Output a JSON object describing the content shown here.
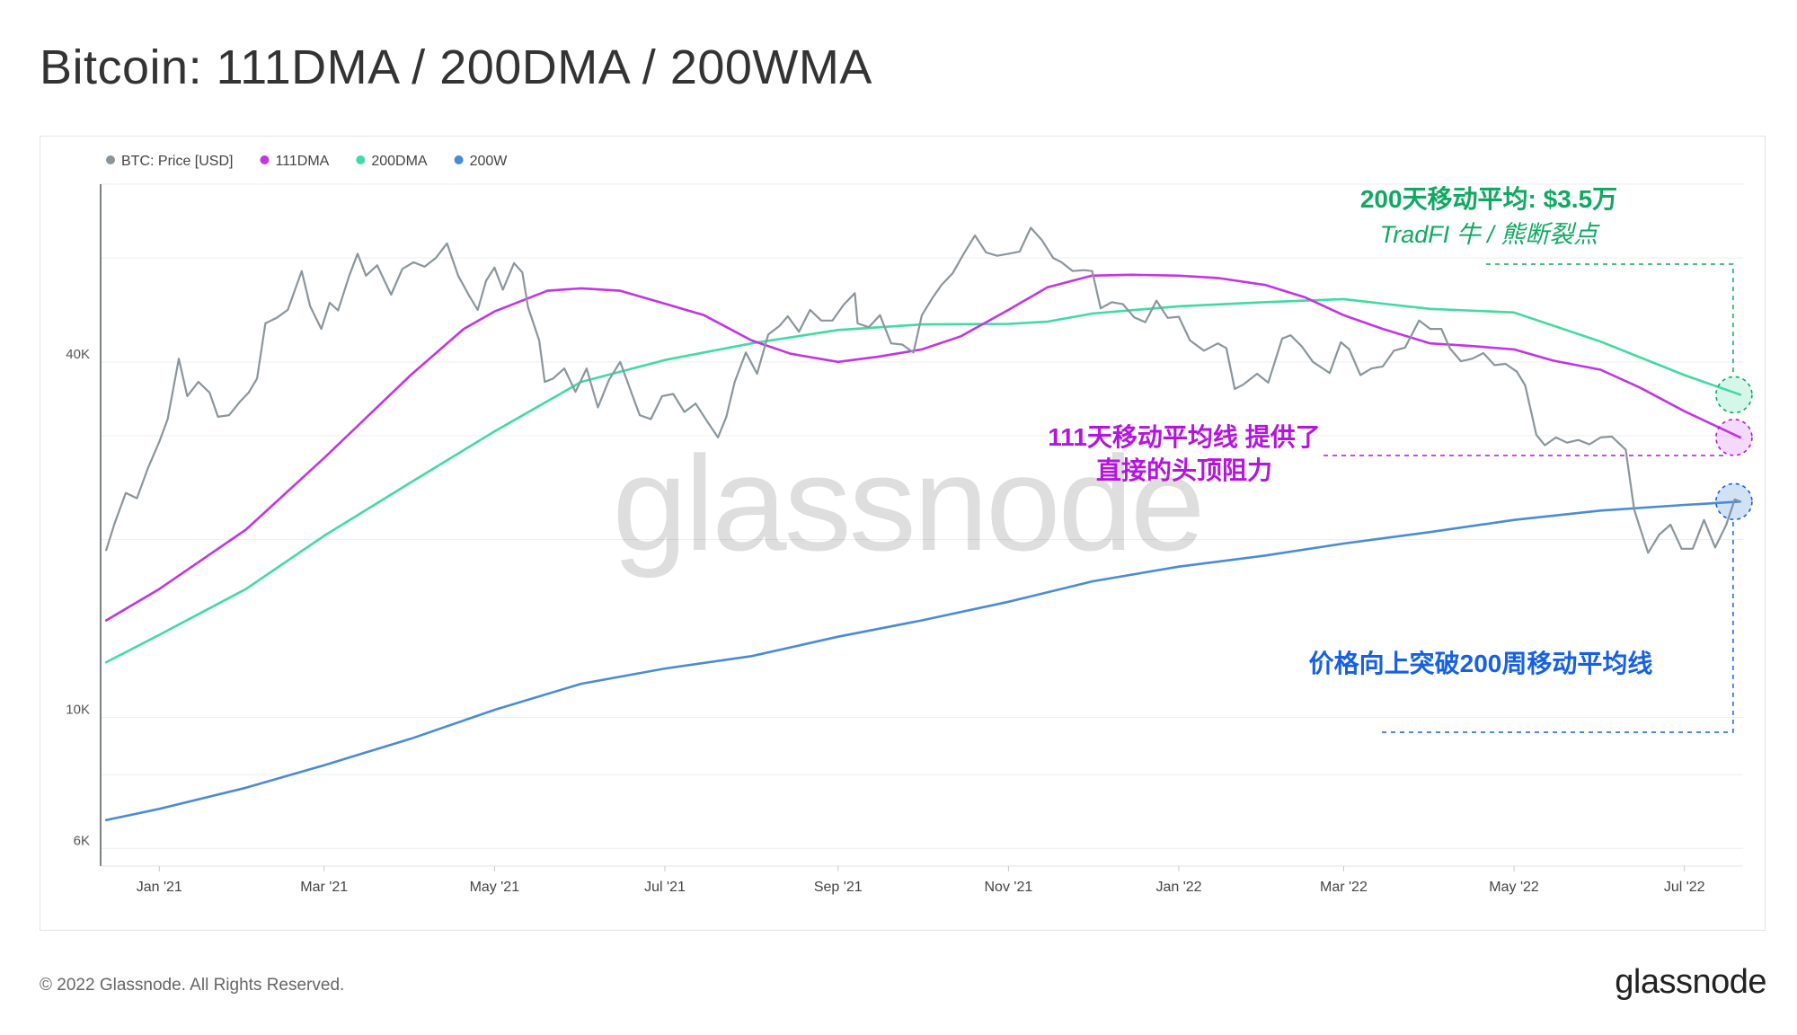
{
  "title": "Bitcoin: 111DMA / 200DMA / 200WMA",
  "footer": {
    "copyright": "© 2022 Glassnode. All Rights Reserved.",
    "logo": "glassnode"
  },
  "watermark": "glassnode",
  "annotations": {
    "dma200_line1": "200天移动平均: $3.5万",
    "dma200_line2": "TradFI 牛 / 熊断裂点",
    "dma111_line1": "111天移动平均线 提供了",
    "dma111_line2": "直接的头顶阻力",
    "wma200_line1": "价格向上突破200周移动平均线"
  },
  "colors": {
    "price": "#8a969c",
    "dma111": "#c234e6",
    "dma200": "#3fdba1",
    "wma200": "#4a8bd8",
    "annotation_green": "#0fa961",
    "annotation_purple": "#b514e0",
    "annotation_blue": "#1560e6"
  },
  "chart_data": {
    "type": "line",
    "yscale": "log",
    "ylim": [
      5600,
      80000
    ],
    "yticks": [
      {
        "label": "6K",
        "value": 6000
      },
      {
        "label": "10K",
        "value": 10000
      },
      {
        "label": "40K",
        "value": 40000
      }
    ],
    "xlim": [
      "2020-12-11",
      "2022-07-22"
    ],
    "xticks": [
      {
        "label": "Jan '21",
        "date": "2021-01-01"
      },
      {
        "label": "Mar '21",
        "date": "2021-03-01"
      },
      {
        "label": "May '21",
        "date": "2021-05-01"
      },
      {
        "label": "Jul '21",
        "date": "2021-07-01"
      },
      {
        "label": "Sep '21",
        "date": "2021-09-01"
      },
      {
        "label": "Nov '21",
        "date": "2021-11-01"
      },
      {
        "label": "Jan '22",
        "date": "2022-01-01"
      },
      {
        "label": "Mar '22",
        "date": "2022-03-01"
      },
      {
        "label": "May '22",
        "date": "2022-05-01"
      },
      {
        "label": "Jul '22",
        "date": "2022-07-01"
      }
    ],
    "legend": {
      "position": "top-left"
    },
    "series": [
      {
        "name": "BTC: Price [USD]",
        "key": "price",
        "points": [
          [
            "2020-12-13",
            19200
          ],
          [
            "2020-12-16",
            21300
          ],
          [
            "2020-12-20",
            24000
          ],
          [
            "2020-12-24",
            23500
          ],
          [
            "2020-12-28",
            26500
          ],
          [
            "2021-01-01",
            29300
          ],
          [
            "2021-01-04",
            32000
          ],
          [
            "2021-01-08",
            40500
          ],
          [
            "2021-01-11",
            35000
          ],
          [
            "2021-01-15",
            37000
          ],
          [
            "2021-01-19",
            35500
          ],
          [
            "2021-01-22",
            32300
          ],
          [
            "2021-01-26",
            32500
          ],
          [
            "2021-01-30",
            34300
          ],
          [
            "2021-02-02",
            35500
          ],
          [
            "2021-02-05",
            37500
          ],
          [
            "2021-02-08",
            46500
          ],
          [
            "2021-02-12",
            47500
          ],
          [
            "2021-02-16",
            49000
          ],
          [
            "2021-02-21",
            57000
          ],
          [
            "2021-02-24",
            49700
          ],
          [
            "2021-02-28",
            45500
          ],
          [
            "2021-03-03",
            50400
          ],
          [
            "2021-03-06",
            48900
          ],
          [
            "2021-03-10",
            56000
          ],
          [
            "2021-03-13",
            61000
          ],
          [
            "2021-03-16",
            56000
          ],
          [
            "2021-03-20",
            58300
          ],
          [
            "2021-03-25",
            52000
          ],
          [
            "2021-03-29",
            57500
          ],
          [
            "2021-04-02",
            59000
          ],
          [
            "2021-04-06",
            58000
          ],
          [
            "2021-04-10",
            60000
          ],
          [
            "2021-04-14",
            63500
          ],
          [
            "2021-04-18",
            56000
          ],
          [
            "2021-04-22",
            51700
          ],
          [
            "2021-04-25",
            49000
          ],
          [
            "2021-04-28",
            54900
          ],
          [
            "2021-05-01",
            57800
          ],
          [
            "2021-05-04",
            53000
          ],
          [
            "2021-05-08",
            58800
          ],
          [
            "2021-05-11",
            56700
          ],
          [
            "2021-05-13",
            49500
          ],
          [
            "2021-05-17",
            43500
          ],
          [
            "2021-05-19",
            37000
          ],
          [
            "2021-05-22",
            37500
          ],
          [
            "2021-05-26",
            39000
          ],
          [
            "2021-05-30",
            35600
          ],
          [
            "2021-06-03",
            39000
          ],
          [
            "2021-06-07",
            33500
          ],
          [
            "2021-06-11",
            37300
          ],
          [
            "2021-06-15",
            40000
          ],
          [
            "2021-06-19",
            35500
          ],
          [
            "2021-06-22",
            32500
          ],
          [
            "2021-06-26",
            32000
          ],
          [
            "2021-06-30",
            35000
          ],
          [
            "2021-07-04",
            35300
          ],
          [
            "2021-07-08",
            32900
          ],
          [
            "2021-07-12",
            34000
          ],
          [
            "2021-07-16",
            31800
          ],
          [
            "2021-07-20",
            29800
          ],
          [
            "2021-07-23",
            32300
          ],
          [
            "2021-07-26",
            37000
          ],
          [
            "2021-07-30",
            41500
          ],
          [
            "2021-08-03",
            38200
          ],
          [
            "2021-08-07",
            44500
          ],
          [
            "2021-08-11",
            46000
          ],
          [
            "2021-08-14",
            47800
          ],
          [
            "2021-08-18",
            45000
          ],
          [
            "2021-08-22",
            49000
          ],
          [
            "2021-08-26",
            47000
          ],
          [
            "2021-08-30",
            47000
          ],
          [
            "2021-09-03",
            50000
          ],
          [
            "2021-09-07",
            52300
          ],
          [
            "2021-09-08",
            46500
          ],
          [
            "2021-09-12",
            45800
          ],
          [
            "2021-09-16",
            48000
          ],
          [
            "2021-09-20",
            43000
          ],
          [
            "2021-09-24",
            42800
          ],
          [
            "2021-09-28",
            41500
          ],
          [
            "2021-10-01",
            48000
          ],
          [
            "2021-10-05",
            51500
          ],
          [
            "2021-10-08",
            54000
          ],
          [
            "2021-10-12",
            56500
          ],
          [
            "2021-10-16",
            61000
          ],
          [
            "2021-10-20",
            65500
          ],
          [
            "2021-10-24",
            61300
          ],
          [
            "2021-10-28",
            60500
          ],
          [
            "2021-11-01",
            61000
          ],
          [
            "2021-11-05",
            61500
          ],
          [
            "2021-11-09",
            67500
          ],
          [
            "2021-11-13",
            64300
          ],
          [
            "2021-11-17",
            60000
          ],
          [
            "2021-11-20",
            59000
          ],
          [
            "2021-11-24",
            57000
          ],
          [
            "2021-11-28",
            57200
          ],
          [
            "2021-12-01",
            57000
          ],
          [
            "2021-12-04",
            49300
          ],
          [
            "2021-12-08",
            50500
          ],
          [
            "2021-12-12",
            50100
          ],
          [
            "2021-12-16",
            47600
          ],
          [
            "2021-12-20",
            46700
          ],
          [
            "2021-12-24",
            50800
          ],
          [
            "2021-12-28",
            47500
          ],
          [
            "2022-01-01",
            47700
          ],
          [
            "2022-01-05",
            43500
          ],
          [
            "2022-01-10",
            41800
          ],
          [
            "2022-01-15",
            43000
          ],
          [
            "2022-01-18",
            42200
          ],
          [
            "2022-01-21",
            36000
          ],
          [
            "2022-01-24",
            36600
          ],
          [
            "2022-01-29",
            38200
          ],
          [
            "2022-02-02",
            36900
          ],
          [
            "2022-02-07",
            43800
          ],
          [
            "2022-02-10",
            44400
          ],
          [
            "2022-02-14",
            42500
          ],
          [
            "2022-02-18",
            40000
          ],
          [
            "2022-02-24",
            38300
          ],
          [
            "2022-02-28",
            43200
          ],
          [
            "2022-03-03",
            42000
          ],
          [
            "2022-03-07",
            38000
          ],
          [
            "2022-03-11",
            39000
          ],
          [
            "2022-03-15",
            39300
          ],
          [
            "2022-03-19",
            41800
          ],
          [
            "2022-03-23",
            42300
          ],
          [
            "2022-03-28",
            47000
          ],
          [
            "2022-04-01",
            45500
          ],
          [
            "2022-04-05",
            45500
          ],
          [
            "2022-04-08",
            42200
          ],
          [
            "2022-04-12",
            40100
          ],
          [
            "2022-04-16",
            40500
          ],
          [
            "2022-04-20",
            41400
          ],
          [
            "2022-04-24",
            39500
          ],
          [
            "2022-04-28",
            39700
          ],
          [
            "2022-05-02",
            38500
          ],
          [
            "2022-05-05",
            36500
          ],
          [
            "2022-05-09",
            30100
          ],
          [
            "2022-05-12",
            28900
          ],
          [
            "2022-05-16",
            29800
          ],
          [
            "2022-05-20",
            29200
          ],
          [
            "2022-05-24",
            29500
          ],
          [
            "2022-05-28",
            29000
          ],
          [
            "2022-06-01",
            29800
          ],
          [
            "2022-06-05",
            29900
          ],
          [
            "2022-06-10",
            28400
          ],
          [
            "2022-06-13",
            22500
          ],
          [
            "2022-06-15",
            21000
          ],
          [
            "2022-06-18",
            19000
          ],
          [
            "2022-06-22",
            20400
          ],
          [
            "2022-06-26",
            21200
          ],
          [
            "2022-06-30",
            19300
          ],
          [
            "2022-07-04",
            19300
          ],
          [
            "2022-07-08",
            21600
          ],
          [
            "2022-07-12",
            19400
          ],
          [
            "2022-07-16",
            21200
          ],
          [
            "2022-07-19",
            23400
          ],
          [
            "2022-07-21",
            23200
          ]
        ]
      },
      {
        "name": "111DMA",
        "key": "dma111",
        "points": [
          [
            "2020-12-13",
            14600
          ],
          [
            "2021-01-01",
            16500
          ],
          [
            "2021-02-01",
            20800
          ],
          [
            "2021-03-01",
            27500
          ],
          [
            "2021-04-01",
            38000
          ],
          [
            "2021-04-20",
            45500
          ],
          [
            "2021-05-01",
            48700
          ],
          [
            "2021-05-20",
            52800
          ],
          [
            "2021-06-01",
            53300
          ],
          [
            "2021-06-15",
            52800
          ],
          [
            "2021-07-01",
            50200
          ],
          [
            "2021-07-15",
            48000
          ],
          [
            "2021-08-01",
            43500
          ],
          [
            "2021-08-15",
            41300
          ],
          [
            "2021-09-01",
            40000
          ],
          [
            "2021-09-15",
            40800
          ],
          [
            "2021-10-01",
            42000
          ],
          [
            "2021-10-15",
            44200
          ],
          [
            "2021-11-01",
            49000
          ],
          [
            "2021-11-15",
            53500
          ],
          [
            "2021-12-01",
            56000
          ],
          [
            "2021-12-15",
            56200
          ],
          [
            "2022-01-01",
            56000
          ],
          [
            "2022-01-15",
            55500
          ],
          [
            "2022-02-01",
            54000
          ],
          [
            "2022-02-15",
            51500
          ],
          [
            "2022-03-01",
            48000
          ],
          [
            "2022-03-15",
            45500
          ],
          [
            "2022-04-01",
            43000
          ],
          [
            "2022-04-15",
            42600
          ],
          [
            "2022-05-01",
            42000
          ],
          [
            "2022-05-15",
            40200
          ],
          [
            "2022-06-01",
            38800
          ],
          [
            "2022-06-15",
            36200
          ],
          [
            "2022-07-01",
            33000
          ],
          [
            "2022-07-21",
            29800
          ]
        ]
      },
      {
        "name": "200DMA",
        "key": "dma200",
        "points": [
          [
            "2020-12-13",
            12400
          ],
          [
            "2021-01-01",
            13800
          ],
          [
            "2021-02-01",
            16500
          ],
          [
            "2021-03-01",
            20300
          ],
          [
            "2021-04-01",
            25000
          ],
          [
            "2021-05-01",
            30500
          ],
          [
            "2021-06-01",
            37000
          ],
          [
            "2021-07-01",
            40300
          ],
          [
            "2021-08-01",
            43000
          ],
          [
            "2021-09-01",
            45300
          ],
          [
            "2021-10-01",
            46300
          ],
          [
            "2021-11-01",
            46400
          ],
          [
            "2021-11-15",
            46800
          ],
          [
            "2021-12-01",
            48300
          ],
          [
            "2022-01-01",
            49700
          ],
          [
            "2022-02-01",
            50500
          ],
          [
            "2022-03-01",
            51100
          ],
          [
            "2022-03-15",
            50200
          ],
          [
            "2022-04-01",
            49200
          ],
          [
            "2022-05-01",
            48500
          ],
          [
            "2022-06-01",
            43300
          ],
          [
            "2022-07-01",
            38000
          ],
          [
            "2022-07-21",
            35200
          ]
        ]
      },
      {
        "name": "200W",
        "key": "wma200",
        "points": [
          [
            "2020-12-13",
            6700
          ],
          [
            "2021-01-01",
            7000
          ],
          [
            "2021-02-01",
            7600
          ],
          [
            "2021-03-01",
            8300
          ],
          [
            "2021-04-01",
            9200
          ],
          [
            "2021-05-01",
            10300
          ],
          [
            "2021-06-01",
            11400
          ],
          [
            "2021-07-01",
            12100
          ],
          [
            "2021-08-01",
            12700
          ],
          [
            "2021-09-01",
            13700
          ],
          [
            "2021-10-01",
            14600
          ],
          [
            "2021-11-01",
            15700
          ],
          [
            "2021-12-01",
            17000
          ],
          [
            "2022-01-01",
            18000
          ],
          [
            "2022-02-01",
            18800
          ],
          [
            "2022-03-01",
            19700
          ],
          [
            "2022-04-01",
            20600
          ],
          [
            "2022-05-01",
            21600
          ],
          [
            "2022-06-01",
            22400
          ],
          [
            "2022-07-01",
            22900
          ],
          [
            "2022-07-21",
            23200
          ]
        ]
      }
    ]
  }
}
